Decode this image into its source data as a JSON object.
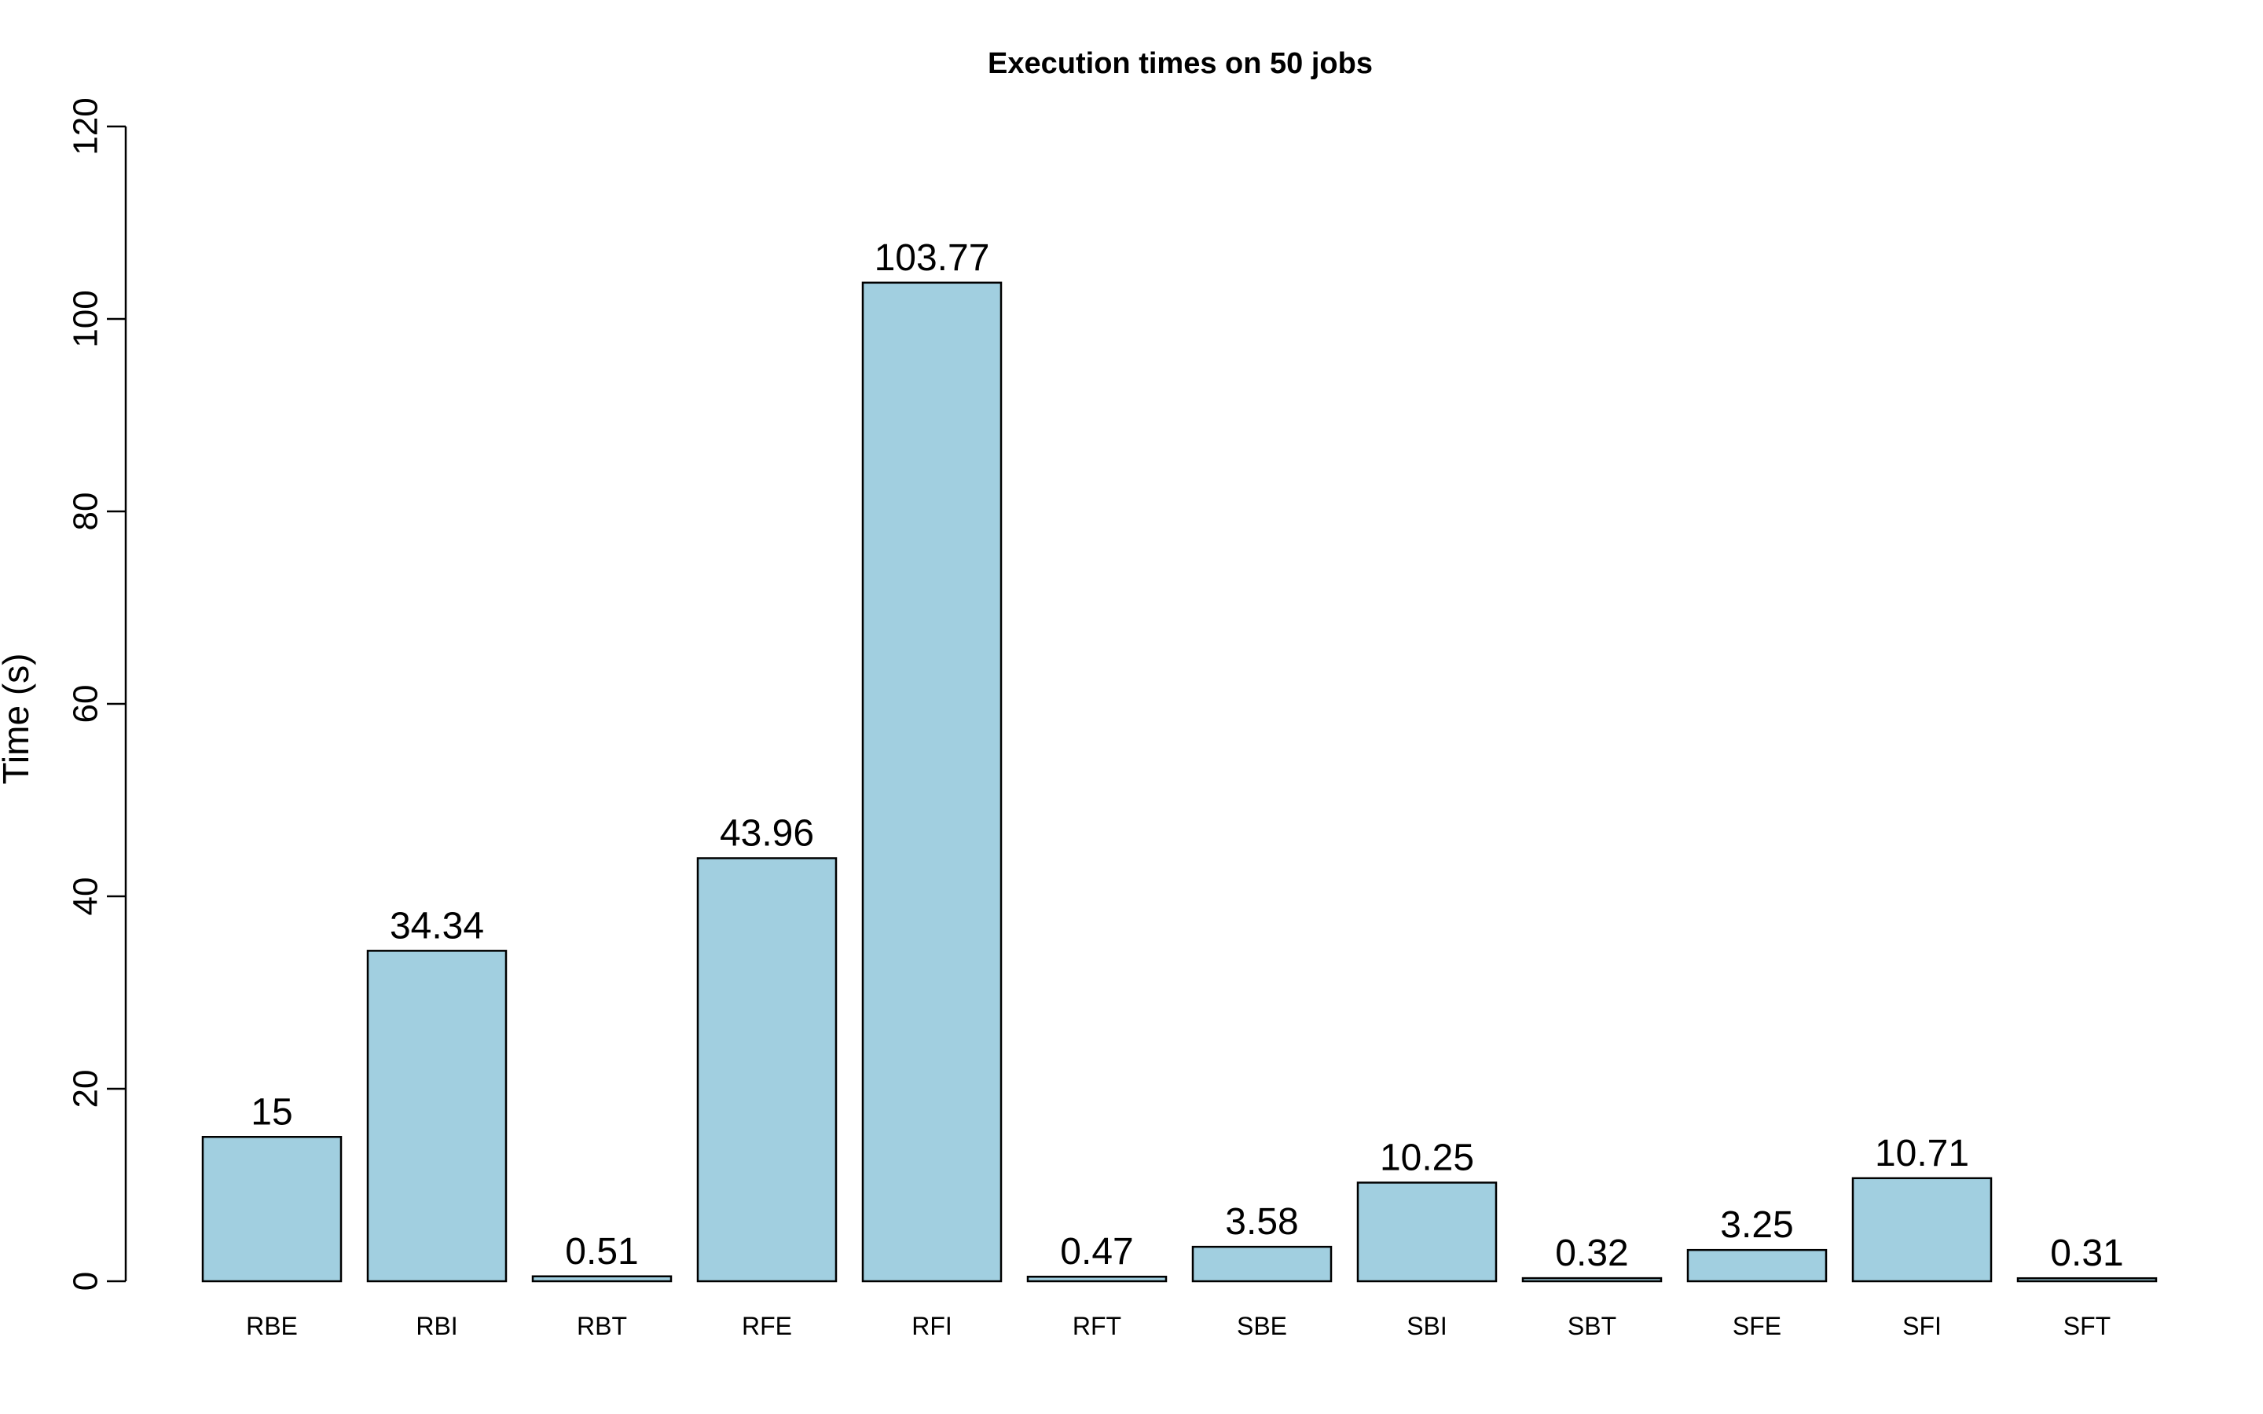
{
  "chart_data": {
    "type": "bar",
    "title": "Execution times on 50 jobs",
    "xlabel": "",
    "ylabel": "Time (s)",
    "ylim": [
      0,
      120
    ],
    "yticks": [
      0,
      20,
      40,
      60,
      80,
      100,
      120
    ],
    "categories": [
      "RBE",
      "RBI",
      "RBT",
      "RFE",
      "RFI",
      "RFT",
      "SBE",
      "SBI",
      "SBT",
      "SFE",
      "SFI",
      "SFT"
    ],
    "values": [
      15,
      34.34,
      0.51,
      43.96,
      103.77,
      0.47,
      3.58,
      10.25,
      0.32,
      3.25,
      10.71,
      0.31
    ],
    "value_labels": [
      "15",
      "34.34",
      "0.51",
      "43.96",
      "103.77",
      "0.47",
      "3.58",
      "10.25",
      "0.32",
      "3.25",
      "10.71",
      "0.31"
    ],
    "bar_color": "#A1CFE0",
    "grid": false,
    "legend": "none"
  }
}
